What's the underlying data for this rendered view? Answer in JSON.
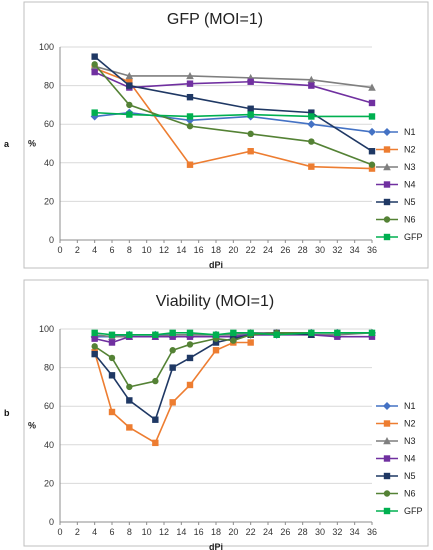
{
  "chart_data": [
    {
      "type": "line",
      "panel_label": "a",
      "title": "GFP (MOI=1)",
      "xlabel": "dPi",
      "ylabel": "%",
      "xlim": [
        0,
        36
      ],
      "ylim": [
        0,
        100
      ],
      "xticks": [
        "0",
        "2",
        "4",
        "6",
        "8",
        "10",
        "12",
        "14",
        "16",
        "18",
        "20",
        "22",
        "24",
        "26",
        "28",
        "30",
        "32",
        "34",
        "36"
      ],
      "yticks": [
        "0",
        "20",
        "40",
        "60",
        "80",
        "100"
      ],
      "grid": true,
      "legend": "right",
      "series": [
        {
          "name": "N1",
          "color": "#4472C4",
          "marker": "diamond",
          "x": [
            4,
            8,
            15,
            22,
            29,
            36
          ],
          "y": [
            64,
            66,
            62,
            64,
            60,
            56
          ]
        },
        {
          "name": "N2",
          "color": "#ED7D31",
          "marker": "square",
          "x": [
            4,
            8,
            15,
            22,
            29,
            36
          ],
          "y": [
            89,
            82,
            39,
            46,
            38,
            37
          ]
        },
        {
          "name": "N3",
          "color": "#7F7F7F",
          "marker": "triangle",
          "x": [
            4,
            8,
            15,
            22,
            29,
            36
          ],
          "y": [
            90,
            85,
            85,
            84,
            83,
            79
          ]
        },
        {
          "name": "N4",
          "color": "#7030A0",
          "marker": "square",
          "x": [
            4,
            8,
            15,
            22,
            29,
            36
          ],
          "y": [
            87,
            79,
            81,
            82,
            80,
            71
          ]
        },
        {
          "name": "N5",
          "color": "#1F3864",
          "marker": "square",
          "x": [
            4,
            8,
            15,
            22,
            29,
            36
          ],
          "y": [
            95,
            80,
            74,
            68,
            66,
            46
          ]
        },
        {
          "name": "N6",
          "color": "#548235",
          "marker": "circle",
          "x": [
            4,
            8,
            15,
            22,
            29,
            36
          ],
          "y": [
            91,
            70,
            59,
            55,
            51,
            39
          ]
        },
        {
          "name": "GFP",
          "color": "#00B050",
          "marker": "square",
          "x": [
            4,
            8,
            15,
            22,
            29,
            36
          ],
          "y": [
            66,
            65,
            64,
            65,
            64,
            64
          ]
        }
      ]
    },
    {
      "type": "line",
      "panel_label": "b",
      "title": "Viability (MOI=1)",
      "xlabel": "dPi",
      "ylabel": "%",
      "xlim": [
        0,
        36
      ],
      "ylim": [
        0,
        100
      ],
      "xticks": [
        "0",
        "2",
        "4",
        "6",
        "8",
        "10",
        "12",
        "14",
        "16",
        "18",
        "20",
        "22",
        "24",
        "26",
        "28",
        "30",
        "32",
        "34",
        "36"
      ],
      "yticks": [
        "0",
        "20",
        "40",
        "60",
        "80",
        "100"
      ],
      "grid": true,
      "legend": "right",
      "series": [
        {
          "name": "N1",
          "color": "#4472C4",
          "marker": "diamond",
          "x": [
            4,
            6,
            8,
            11,
            13,
            15,
            18,
            20,
            22,
            25,
            29,
            32,
            36
          ],
          "y": [
            96,
            96,
            97,
            97,
            97,
            97,
            97,
            97,
            97,
            97,
            98,
            98,
            98
          ]
        },
        {
          "name": "N2",
          "color": "#ED7D31",
          "marker": "square",
          "x": [
            4,
            6,
            8,
            11,
            13,
            15,
            18,
            20,
            22
          ],
          "y": [
            88,
            57,
            49,
            41,
            62,
            71,
            89,
            93,
            93
          ]
        },
        {
          "name": "N3",
          "color": "#7F7F7F",
          "marker": "triangle",
          "x": [
            4,
            6,
            8,
            11,
            13,
            15,
            18,
            20,
            22,
            25,
            29,
            32,
            36
          ],
          "y": [
            97,
            96,
            96,
            96,
            97,
            97,
            97,
            97,
            98,
            98,
            97,
            97,
            98
          ]
        },
        {
          "name": "N4",
          "color": "#7030A0",
          "marker": "square",
          "x": [
            4,
            6,
            8,
            11,
            13,
            15,
            18,
            20,
            22,
            25,
            29,
            32,
            36
          ],
          "y": [
            95,
            93,
            96,
            96,
            96,
            96,
            96,
            96,
            97,
            97,
            97,
            96,
            96
          ]
        },
        {
          "name": "N5",
          "color": "#1F3864",
          "marker": "square",
          "x": [
            4,
            6,
            8,
            11,
            13,
            15,
            18,
            20,
            22,
            25,
            29
          ],
          "y": [
            87,
            76,
            63,
            53,
            80,
            85,
            93,
            95,
            97,
            98,
            97
          ]
        },
        {
          "name": "N6",
          "color": "#548235",
          "marker": "circle",
          "x": [
            4,
            6,
            8,
            11,
            13,
            15,
            18,
            20,
            22,
            25,
            29,
            32,
            36
          ],
          "y": [
            91,
            85,
            70,
            73,
            89,
            92,
            95,
            94,
            97,
            98,
            98,
            98,
            98
          ]
        },
        {
          "name": "GFP",
          "color": "#00B050",
          "marker": "square",
          "x": [
            4,
            6,
            8,
            11,
            13,
            15,
            18,
            20,
            22,
            25,
            29,
            32,
            36
          ],
          "y": [
            98,
            97,
            97,
            97,
            98,
            98,
            97,
            98,
            98,
            97,
            98,
            98,
            98
          ]
        }
      ]
    }
  ]
}
